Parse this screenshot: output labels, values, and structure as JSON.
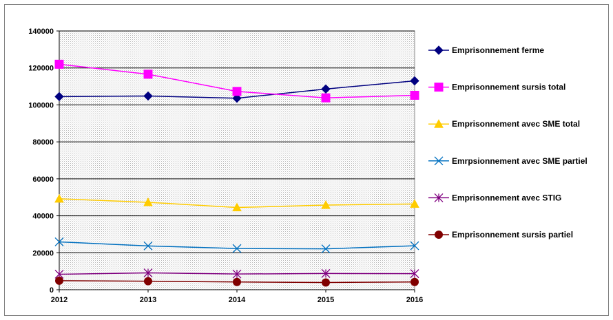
{
  "chart_data": {
    "type": "line",
    "title": "",
    "xlabel": "",
    "ylabel": "",
    "x": [
      "2012",
      "2013",
      "2014",
      "2015",
      "2016"
    ],
    "ylim": [
      0,
      140000
    ],
    "yticks": [
      0,
      20000,
      40000,
      60000,
      80000,
      100000,
      120000,
      140000
    ],
    "ytick_labels": [
      "0",
      "20000",
      "40000",
      "60000",
      "80000",
      "100000",
      "120000",
      "140000"
    ],
    "grid": true,
    "legend_position": "right",
    "series": [
      {
        "name": "Emprisonnement ferme",
        "values": [
          104500,
          104800,
          103600,
          108600,
          113000
        ],
        "color": "#000080",
        "marker": "diamond"
      },
      {
        "name": "Emprisonnement sursis total",
        "values": [
          122000,
          116600,
          107300,
          103800,
          105200
        ],
        "color": "#ff00ff",
        "marker": "square"
      },
      {
        "name": "Emprisonnement avec SME total",
        "values": [
          49200,
          47300,
          44500,
          45800,
          46400
        ],
        "color": "#ffcc00",
        "marker": "triangle"
      },
      {
        "name": "Emrpsionnement avec SME partiel",
        "values": [
          25900,
          23700,
          22300,
          22100,
          23800
        ],
        "color": "#0070c0",
        "marker": "x"
      },
      {
        "name": "Emprisonnement avec STIG",
        "values": [
          8400,
          9100,
          8500,
          8800,
          8700
        ],
        "color": "#800080",
        "marker": "star"
      },
      {
        "name": "Emprisonnement sursis partiel",
        "values": [
          4900,
          4600,
          4200,
          3900,
          4200
        ],
        "color": "#800000",
        "marker": "circle"
      }
    ]
  }
}
